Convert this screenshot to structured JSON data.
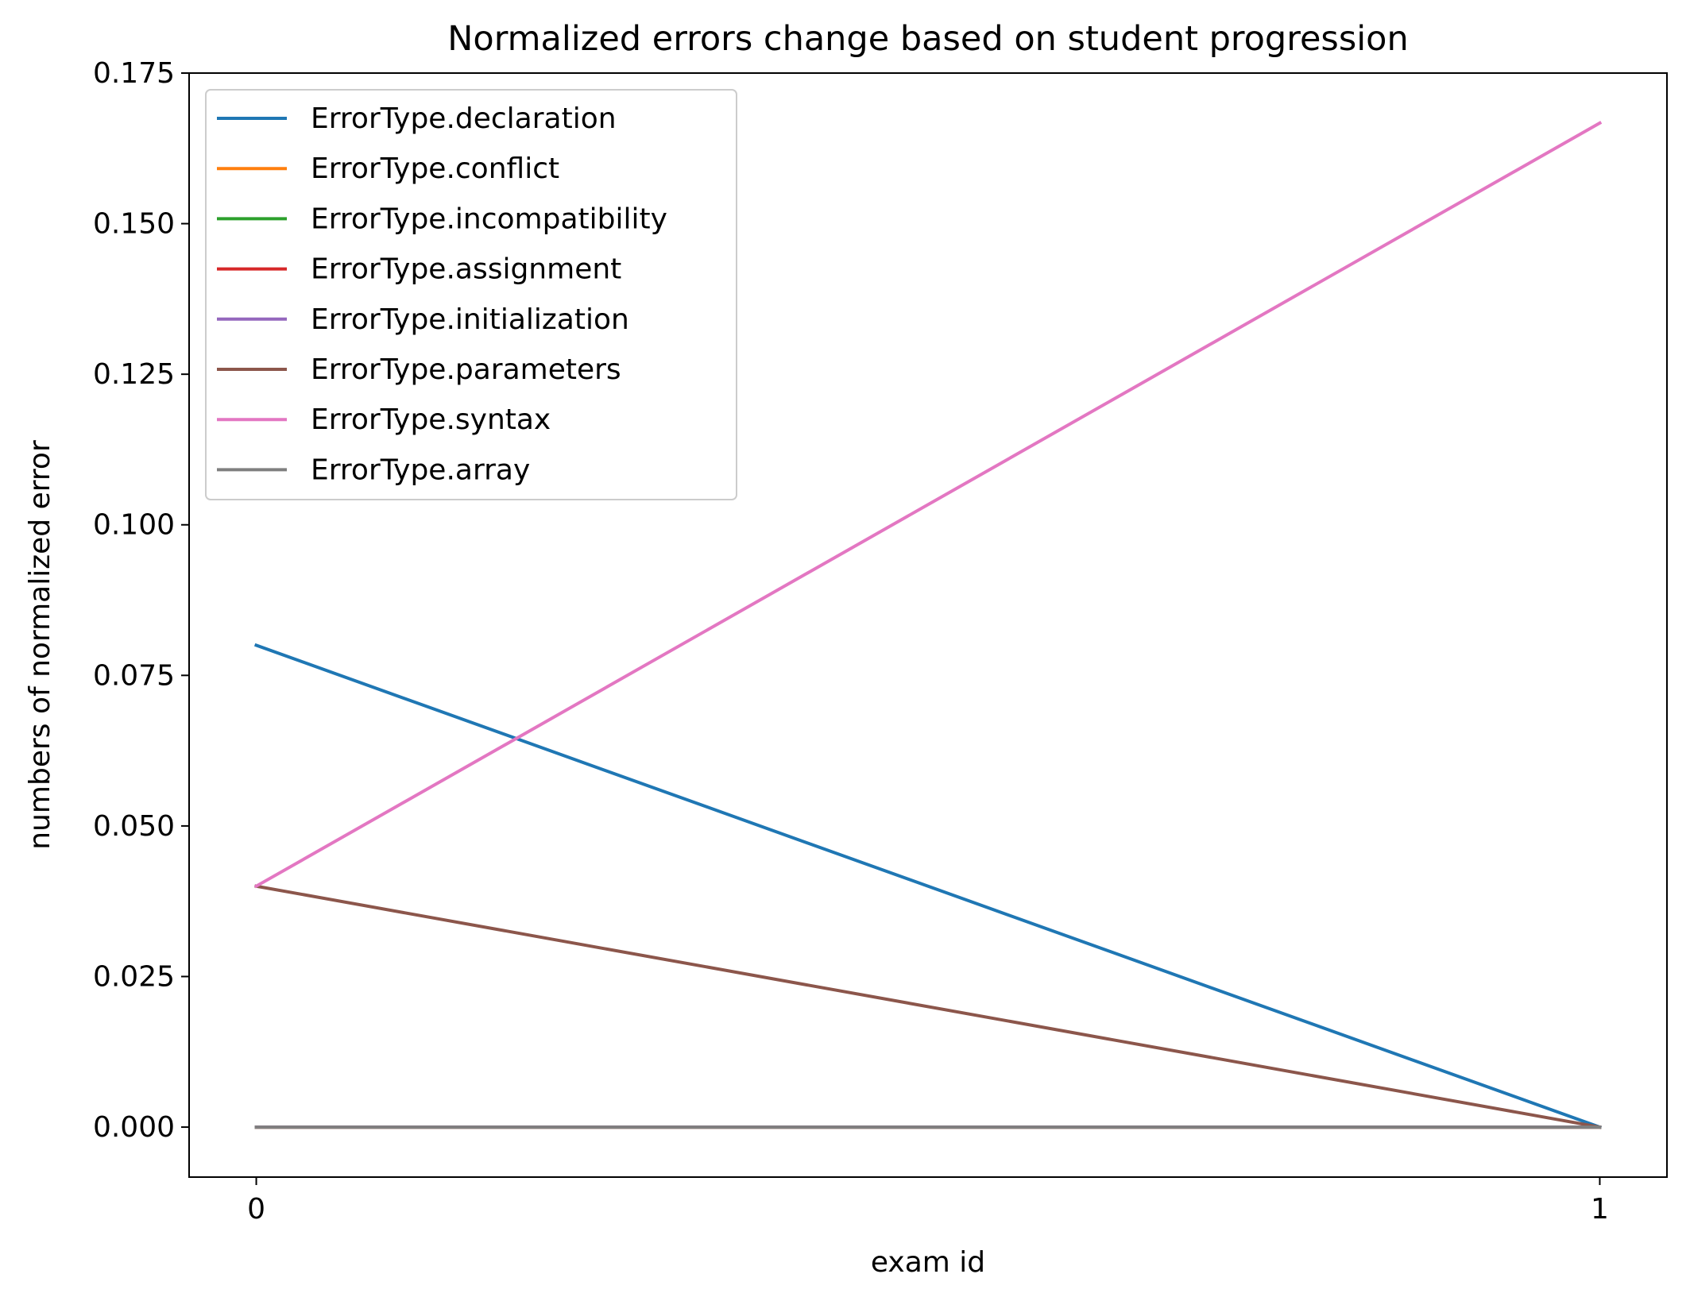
{
  "chart_data": {
    "type": "line",
    "title": "Normalized errors change based on student progression",
    "xlabel": "exam id",
    "ylabel": "numbers of normalized error",
    "x": [
      0,
      1
    ],
    "xticks": [
      "0",
      "1"
    ],
    "yticks": [
      "0.000",
      "0.025",
      "0.050",
      "0.075",
      "0.100",
      "0.125",
      "0.150",
      "0.175"
    ],
    "xlim": [
      -0.05,
      1.05
    ],
    "ylim": [
      -0.0083,
      0.175
    ],
    "grid": false,
    "legend_position": "top-left",
    "series": [
      {
        "name": "ErrorType.declaration",
        "color": "#1f77b4",
        "values": [
          0.08,
          0.0
        ]
      },
      {
        "name": "ErrorType.conflict",
        "color": "#ff7f0e",
        "values": [
          0.0,
          0.0
        ]
      },
      {
        "name": "ErrorType.incompatibility",
        "color": "#2ca02c",
        "values": [
          0.0,
          0.0
        ]
      },
      {
        "name": "ErrorType.assignment",
        "color": "#d62728",
        "values": [
          0.0,
          0.0
        ]
      },
      {
        "name": "ErrorType.initialization",
        "color": "#9467bd",
        "values": [
          0.0,
          0.0
        ]
      },
      {
        "name": "ErrorType.parameters",
        "color": "#8c564b",
        "values": [
          0.04,
          0.0
        ]
      },
      {
        "name": "ErrorType.syntax",
        "color": "#e377c2",
        "values": [
          0.04,
          0.1667
        ]
      },
      {
        "name": "ErrorType.array",
        "color": "#7f7f7f",
        "values": [
          0.0,
          0.0
        ]
      }
    ]
  }
}
